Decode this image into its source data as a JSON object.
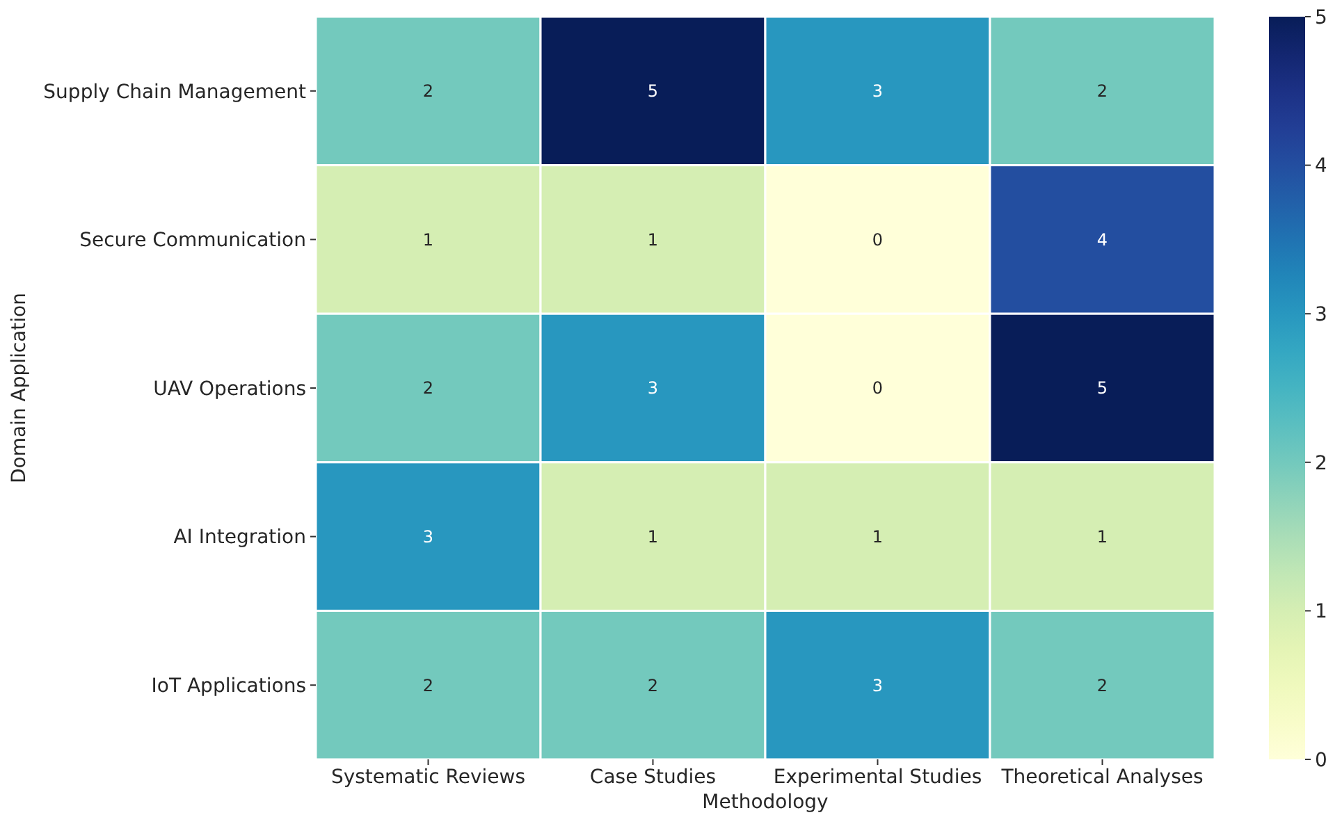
{
  "chart_data": {
    "type": "heatmap",
    "xlabel": "Methodology",
    "ylabel": "Domain Application",
    "categories": [
      "Systematic Reviews",
      "Case Studies",
      "Experimental Studies",
      "Theoretical Analyses"
    ],
    "y_categories": [
      "Supply Chain Management",
      "Secure Communication",
      "UAV Operations",
      "AI Integration",
      "IoT Applications"
    ],
    "cells": [
      [
        2,
        5,
        3,
        2
      ],
      [
        1,
        1,
        0,
        4
      ],
      [
        2,
        3,
        0,
        5
      ],
      [
        3,
        1,
        1,
        1
      ],
      [
        2,
        2,
        3,
        2
      ]
    ],
    "data_labels": true,
    "clim": [
      0,
      5
    ],
    "cticks": [
      0,
      1,
      2,
      3,
      4,
      5
    ]
  }
}
